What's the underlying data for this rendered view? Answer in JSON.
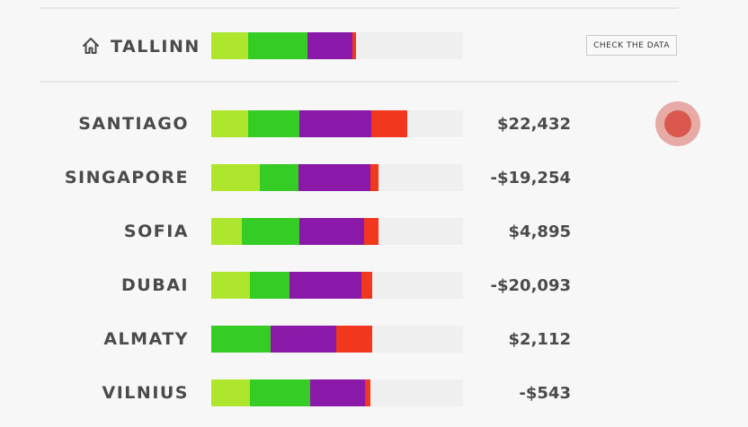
{
  "colors": {
    "segment_1": "#ade62d",
    "segment_2": "#36cc26",
    "segment_3": "#8a18a8",
    "segment_4": "#f1381f",
    "bar_background": "#efefef"
  },
  "home": {
    "icon": "home-icon",
    "city": "TALLINN",
    "segments": [
      0.146,
      0.236,
      0.179,
      0.014
    ],
    "check_label": "CHECK THE DATA"
  },
  "cities": [
    {
      "name": "SANTIAGO",
      "value": "$22,432",
      "segments": [
        0.146,
        0.204,
        0.286,
        0.143
      ]
    },
    {
      "name": "SINGAPORE",
      "value": "-$19,254",
      "segments": [
        0.193,
        0.154,
        0.286,
        0.032
      ]
    },
    {
      "name": "SOFIA",
      "value": "$4,895",
      "segments": [
        0.121,
        0.229,
        0.257,
        0.057
      ]
    },
    {
      "name": "DUBAI",
      "value": "-$20,093",
      "segments": [
        0.154,
        0.157,
        0.286,
        0.043
      ]
    },
    {
      "name": "ALMATY",
      "value": "$2,112",
      "segments": [
        0.0,
        0.236,
        0.261,
        0.143
      ]
    },
    {
      "name": "VILNIUS",
      "value": "-$543",
      "segments": [
        0.154,
        0.239,
        0.218,
        0.021
      ]
    }
  ],
  "record_button": {
    "icon": "record-icon"
  }
}
